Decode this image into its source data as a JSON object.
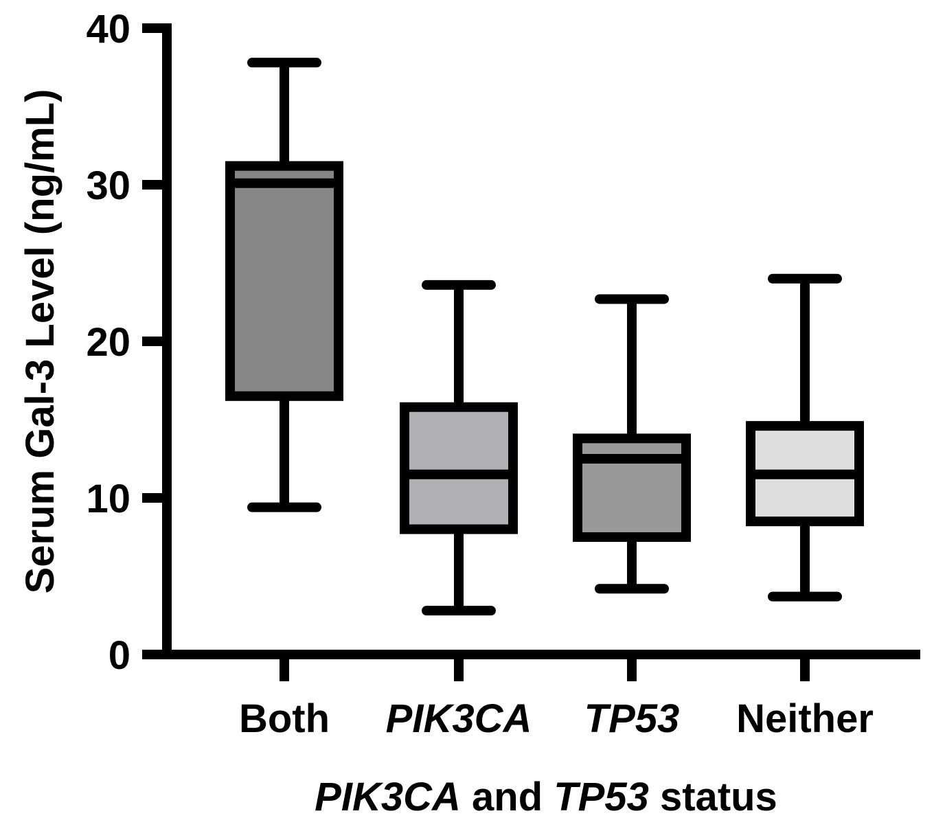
{
  "chart_data": {
    "type": "box",
    "title": "",
    "xlabel": {
      "parts": [
        {
          "text": "PIK3CA",
          "italic": true
        },
        {
          "text": " and ",
          "italic": false
        },
        {
          "text": "TP53",
          "italic": true
        },
        {
          "text": " status",
          "italic": false
        }
      ]
    },
    "ylabel": "Serum Gal-3 Level (ng/mL)",
    "ylim": [
      0,
      40
    ],
    "yticks": [
      0,
      10,
      20,
      30,
      40
    ],
    "grid": false,
    "legend": "none",
    "categories": [
      {
        "label": "Both",
        "italic": false
      },
      {
        "label": "PIK3CA",
        "italic": true
      },
      {
        "label": "TP53",
        "italic": true
      },
      {
        "label": "Neither",
        "italic": false
      }
    ],
    "boxes": [
      {
        "min": 9.4,
        "q1": 16.5,
        "median": 30.1,
        "q3": 31.2,
        "max": 37.8,
        "color": "#858685"
      },
      {
        "min": 2.8,
        "q1": 8.0,
        "median": 11.5,
        "q3": 15.8,
        "max": 23.6,
        "color": "#b1b0b4"
      },
      {
        "min": 4.2,
        "q1": 7.5,
        "median": 12.5,
        "q3": 13.8,
        "max": 22.7,
        "color": "#999999"
      },
      {
        "min": 3.7,
        "q1": 8.5,
        "median": 11.5,
        "q3": 14.6,
        "max": 24.0,
        "color": "#dedede"
      }
    ]
  }
}
